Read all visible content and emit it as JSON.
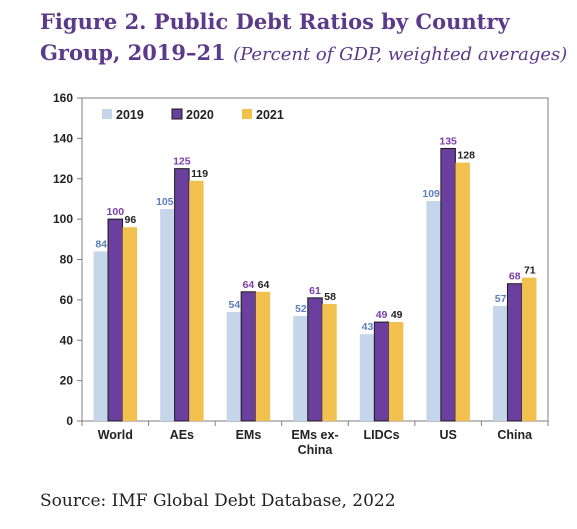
{
  "figure": {
    "title": "Figure 2. Public Debt Ratios by Country Group, 2019–21",
    "subtitle": "(Percent of GDP, weighted averages)"
  },
  "source": "Source: IMF Global Debt Database, 2022",
  "colors": {
    "2019": "#c5d5ea",
    "2020": "#6a3f9e",
    "2021": "#f2c04f",
    "label_2019": "#5b7fbf",
    "label_2020": "#7b3fa8",
    "label_2021": "#222222"
  },
  "chart_data": {
    "type": "bar",
    "categories": [
      "World",
      "AEs",
      "EMs",
      "EMs ex-China",
      "LIDCs",
      "US",
      "China"
    ],
    "category_lines": [
      [
        "World"
      ],
      [
        "AEs"
      ],
      [
        "EMs"
      ],
      [
        "EMs ex-",
        "China"
      ],
      [
        "LIDCs"
      ],
      [
        "US"
      ],
      [
        "China"
      ]
    ],
    "series": [
      {
        "name": "2019",
        "values": [
          84,
          105,
          54,
          52,
          43,
          109,
          57
        ]
      },
      {
        "name": "2020",
        "values": [
          100,
          125,
          64,
          61,
          49,
          135,
          68
        ]
      },
      {
        "name": "2021",
        "values": [
          96,
          119,
          64,
          58,
          49,
          128,
          71
        ]
      }
    ],
    "ylim": [
      0,
      160
    ],
    "yticks": [
      0,
      20,
      40,
      60,
      80,
      100,
      120,
      140,
      160
    ],
    "legend_position": "top-left",
    "grid": false,
    "xlabel": "",
    "ylabel": ""
  }
}
